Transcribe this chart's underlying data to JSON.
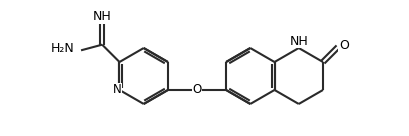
{
  "background": "#ffffff",
  "bond_color": "#2a2a2a",
  "bond_lw": 1.5,
  "text_color": "#000000",
  "label_fontsize": 8.5,
  "figsize": [
    4.1,
    1.36
  ],
  "dpi": 100,
  "xlim": [
    0.0,
    10.2
  ],
  "ylim": [
    -2.2,
    2.8
  ]
}
